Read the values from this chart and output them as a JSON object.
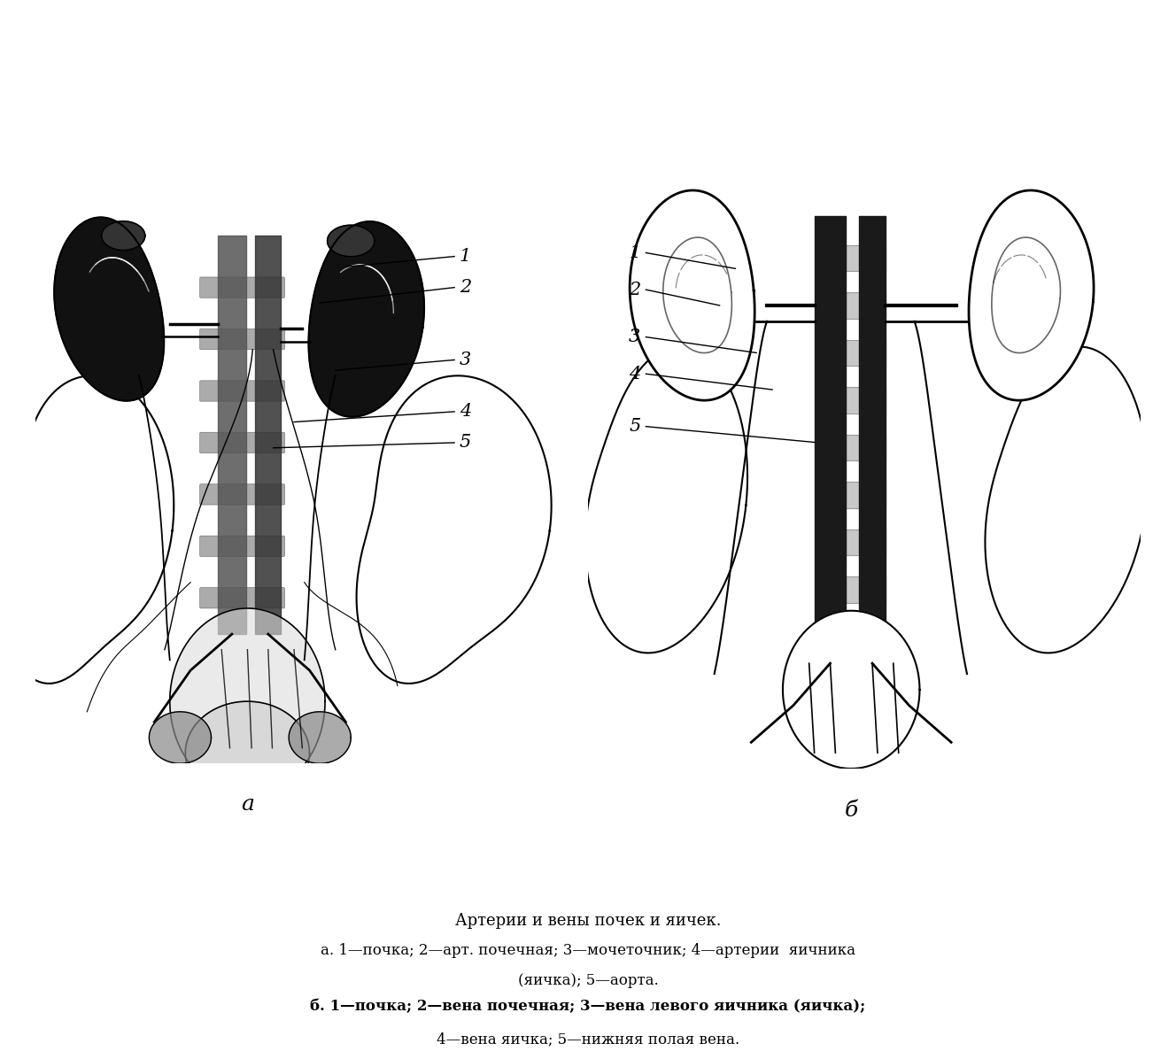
{
  "title": "Артерии и вены почек и яичек.",
  "caption_a": "а. 1—почка; 2—арт. почечная; 3—мочеточник; 4—артерии  яичника",
  "caption_a2": "(яичка); 5—аорта.",
  "caption_b": "б. 1—почка; 2—вена почечная; 3—вена левого яичника (яичка);",
  "caption_b2": "4—вена яичка; 5—нижняя полая вена.",
  "label_a": "а",
  "label_b": "б",
  "bg": "#ffffff",
  "fg": "#000000",
  "fig_w": 13.28,
  "fig_h": 11.96,
  "dpi": 100
}
